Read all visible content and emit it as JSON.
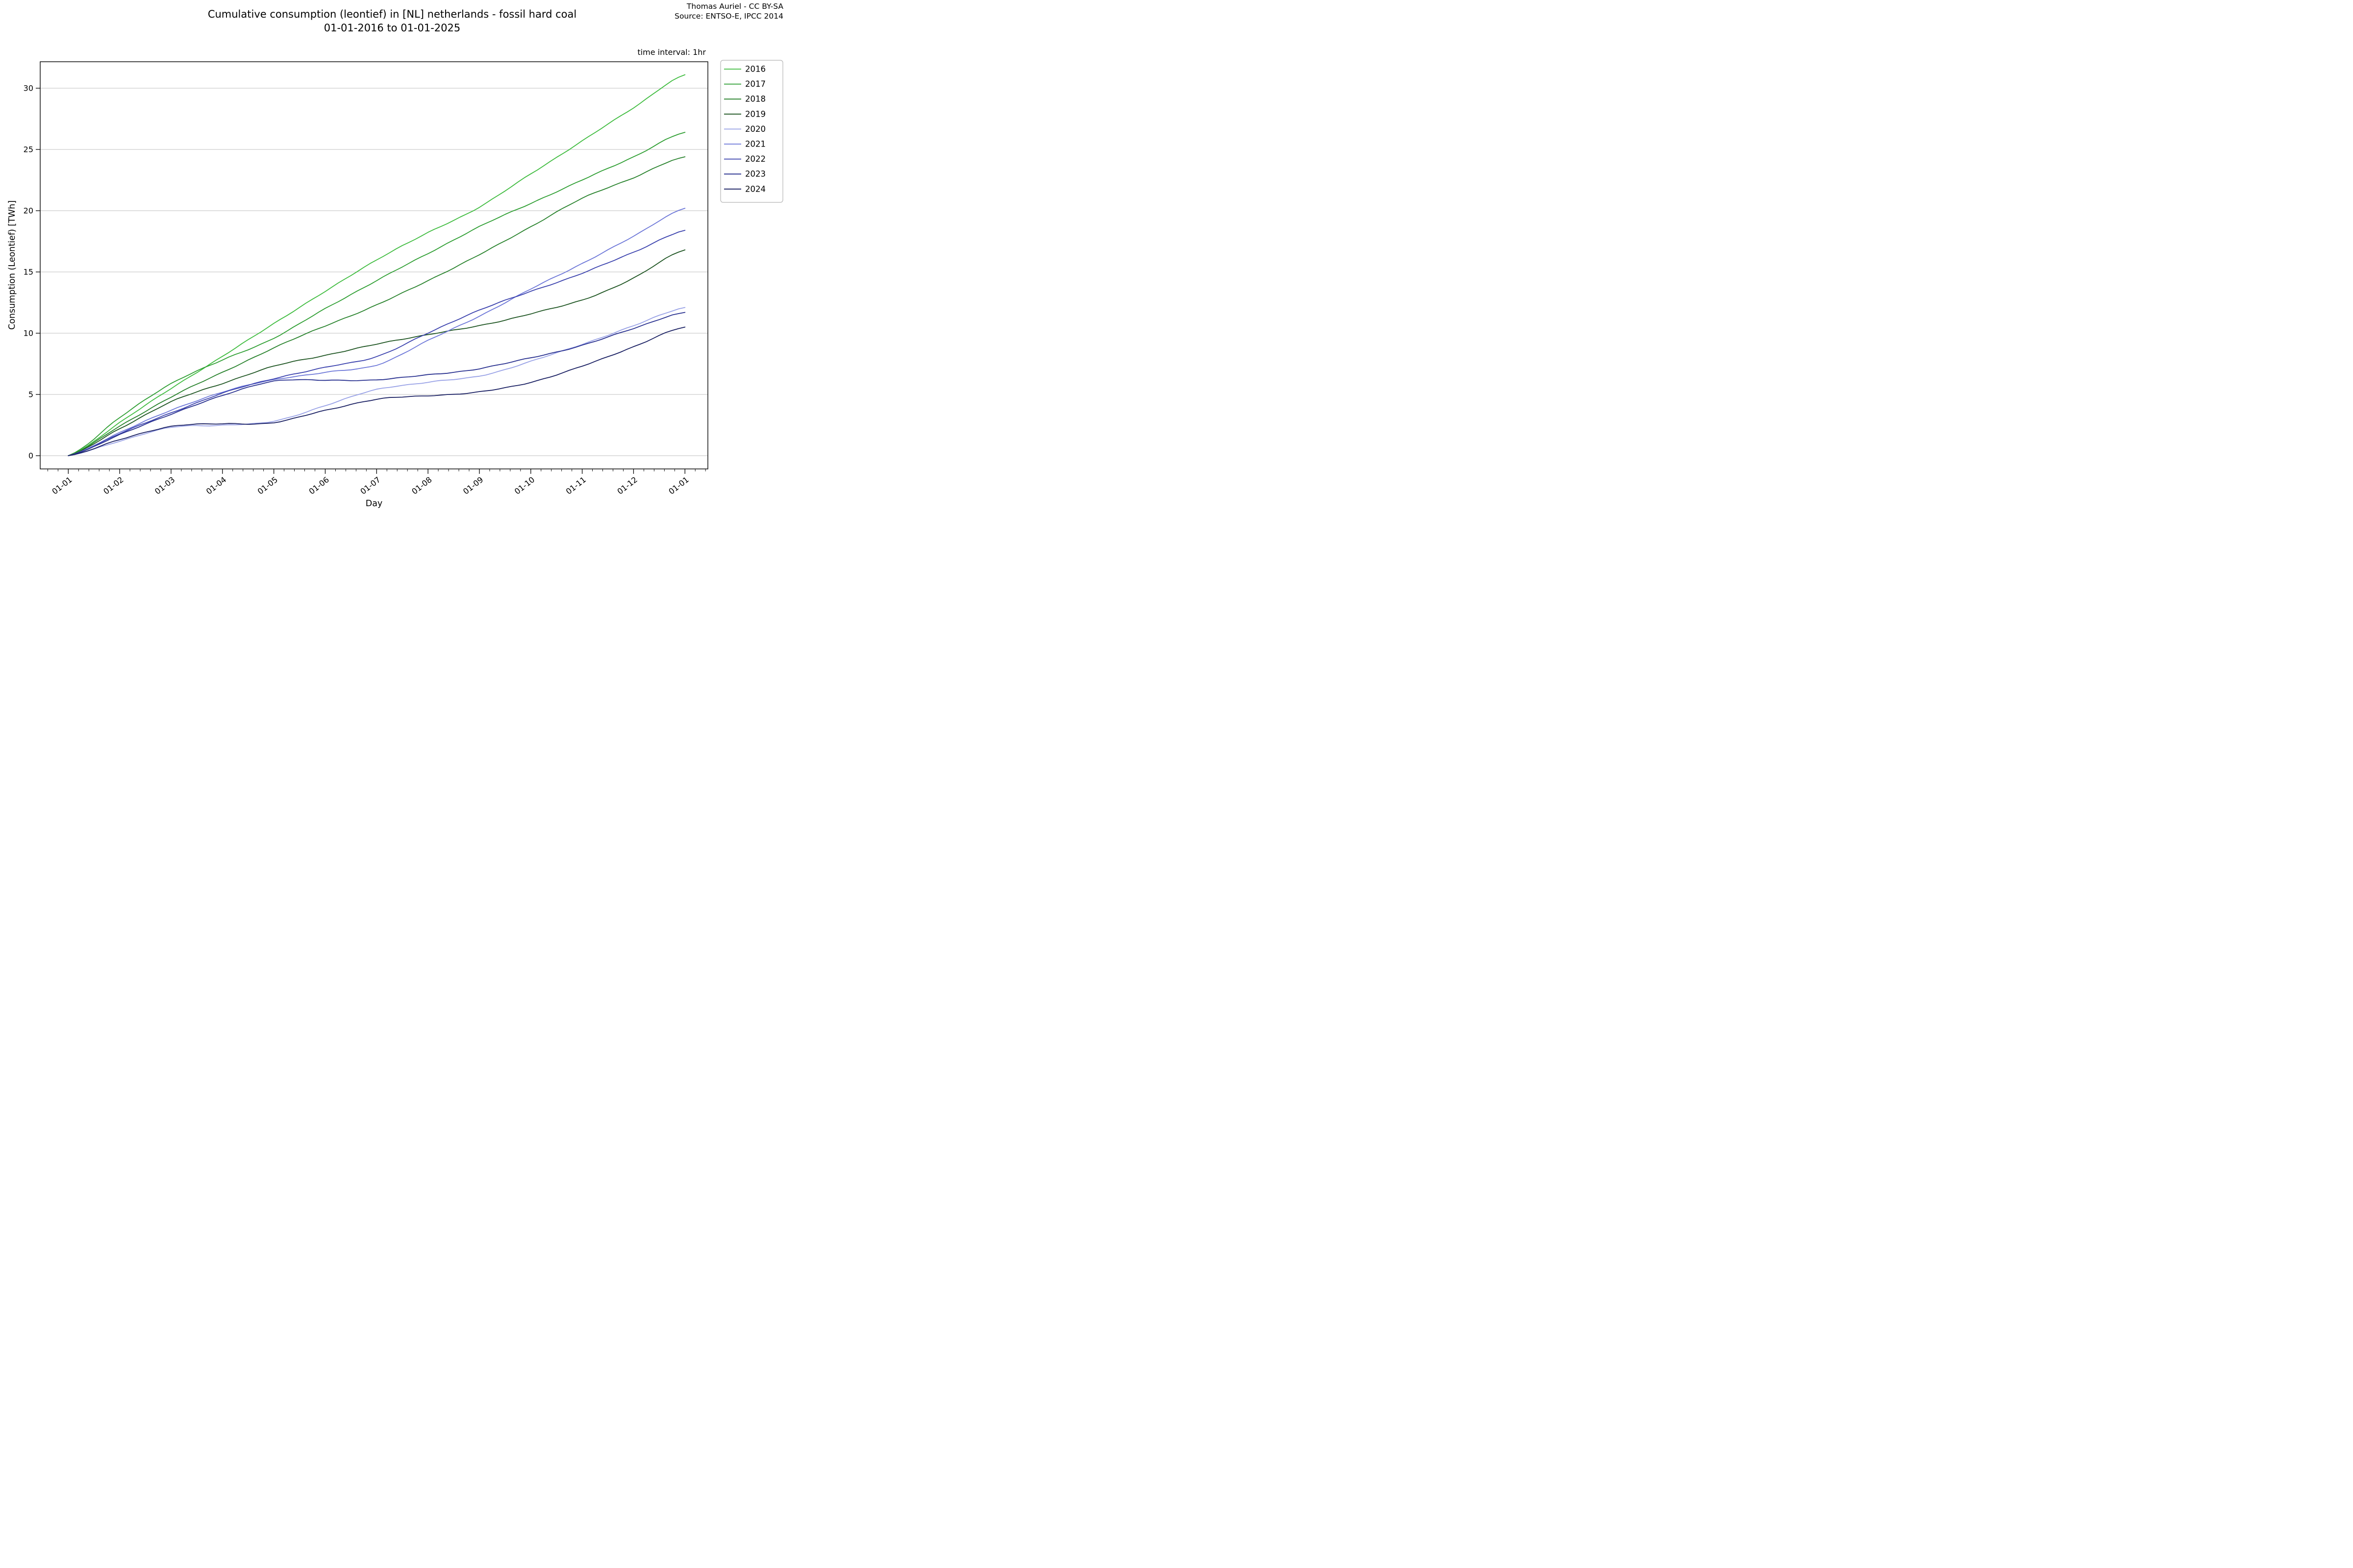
{
  "header": {
    "title_line1": "Cumulative consumption (leontief) in [NL] netherlands - fossil hard coal",
    "title_line2": "01-01-2016 to 01-01-2025",
    "attribution_line1": "Thomas Auriel - CC BY-SA",
    "attribution_line2": "Source: ENTSO-E, IPCC 2014",
    "time_interval_note": "time interval: 1hr"
  },
  "chart_data": {
    "type": "line",
    "title": "Cumulative consumption (leontief) in [NL] netherlands - fossil hard coal 01-01-2016 to 01-01-2025",
    "xlabel": "Day",
    "ylabel": "Consumption (Leontief) [TWh]",
    "x_tick_labels": [
      "01-01",
      "01-02",
      "01-03",
      "01-04",
      "01-05",
      "01-06",
      "01-07",
      "01-08",
      "01-09",
      "01-10",
      "01-11",
      "01-12",
      "01-01"
    ],
    "y_ticks": [
      0,
      5,
      10,
      15,
      20,
      25,
      30
    ],
    "ylim": [
      -1.1,
      32.2
    ],
    "grid": "horizontal",
    "legend_position": "outside upper right",
    "sampling_note": "values in TWh sampled at the start of each month (month-start points 01-01 .. following 01-01)",
    "series": [
      {
        "name": "2016",
        "color": "#3fbc3f",
        "values": [
          0,
          2.7,
          5.5,
          8.1,
          10.8,
          13.4,
          16.0,
          18.2,
          20.3,
          23.0,
          25.7,
          28.4,
          31.1
        ]
      },
      {
        "name": "2017",
        "color": "#2e9e32",
        "values": [
          0,
          3.1,
          5.9,
          7.8,
          9.6,
          12.0,
          14.3,
          16.5,
          18.7,
          20.6,
          22.5,
          24.4,
          26.4
        ]
      },
      {
        "name": "2018",
        "color": "#28822c",
        "values": [
          0,
          2.4,
          4.8,
          6.8,
          8.8,
          10.6,
          12.3,
          14.3,
          16.4,
          18.7,
          21.0,
          22.7,
          24.4
        ]
      },
      {
        "name": "2019",
        "color": "#1d5421",
        "values": [
          0,
          2.2,
          4.4,
          5.9,
          7.3,
          8.2,
          9.1,
          9.9,
          10.6,
          11.6,
          12.7,
          14.5,
          16.8
        ]
      },
      {
        "name": "2020",
        "color": "#98a1e6",
        "values": [
          0,
          1.2,
          2.3,
          2.5,
          2.8,
          4.1,
          5.4,
          6.0,
          6.5,
          7.7,
          9.1,
          10.6,
          12.1
        ]
      },
      {
        "name": "2021",
        "color": "#6d77d8",
        "values": [
          0,
          1.9,
          3.7,
          5.2,
          6.2,
          6.8,
          7.4,
          9.4,
          11.4,
          13.6,
          15.7,
          17.9,
          20.2
        ]
      },
      {
        "name": "2022",
        "color": "#3a41ad",
        "values": [
          0,
          1.8,
          3.5,
          5.1,
          6.3,
          7.2,
          8.1,
          10.0,
          11.9,
          13.4,
          14.9,
          16.6,
          18.4
        ]
      },
      {
        "name": "2023",
        "color": "#28308f",
        "values": [
          0,
          1.7,
          3.4,
          4.9,
          6.1,
          6.15,
          6.2,
          6.6,
          7.1,
          8.0,
          9.0,
          10.4,
          11.7
        ]
      },
      {
        "name": "2024",
        "color": "#191f62",
        "values": [
          0,
          1.3,
          2.4,
          2.6,
          2.7,
          3.7,
          4.6,
          4.9,
          5.2,
          6.0,
          7.3,
          8.9,
          10.5
        ]
      }
    ]
  },
  "style_colors": {
    "axis": "#000000",
    "grid": "#bfbfbf",
    "legend_border": "#b5b5b5",
    "background": "#ffffff"
  }
}
